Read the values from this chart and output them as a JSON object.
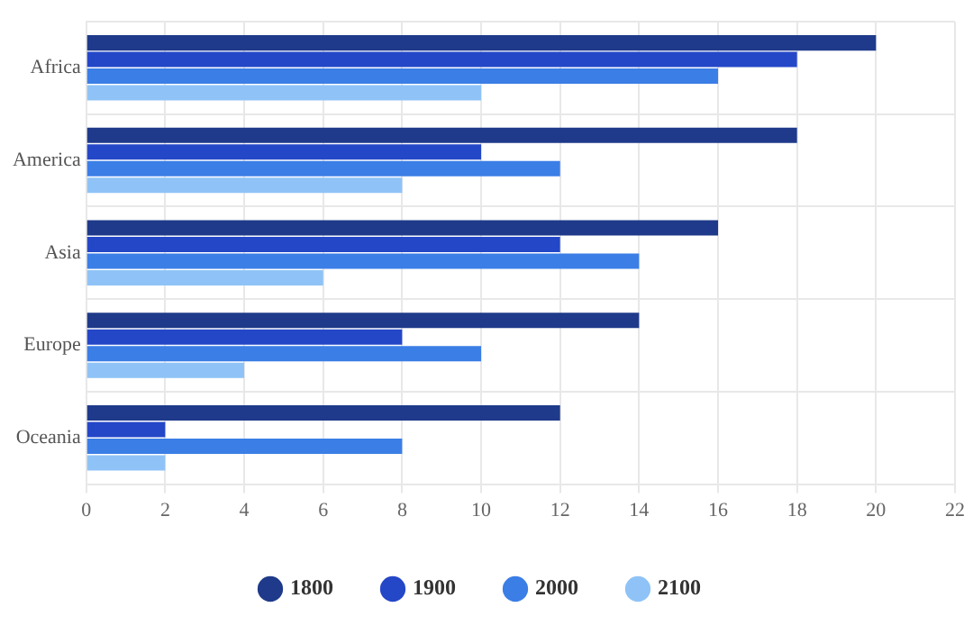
{
  "chart_data": {
    "type": "bar",
    "orientation": "horizontal",
    "categories": [
      "Africa",
      "America",
      "Asia",
      "Europe",
      "Oceania"
    ],
    "series": [
      {
        "name": "1800",
        "color": "#1f3a8a",
        "values": [
          20,
          18,
          16,
          14,
          12
        ]
      },
      {
        "name": "1900",
        "color": "#2447c8",
        "values": [
          18,
          10,
          12,
          8,
          2
        ]
      },
      {
        "name": "2000",
        "color": "#3b7ee6",
        "values": [
          16,
          12,
          14,
          10,
          8
        ]
      },
      {
        "name": "2100",
        "color": "#8fc3f7",
        "values": [
          10,
          8,
          6,
          4,
          2
        ]
      }
    ],
    "xlim": [
      0,
      22
    ],
    "xticks": [
      0,
      2,
      4,
      6,
      8,
      10,
      12,
      14,
      16,
      18,
      20,
      22
    ],
    "grid": true,
    "legend": "bottom"
  }
}
